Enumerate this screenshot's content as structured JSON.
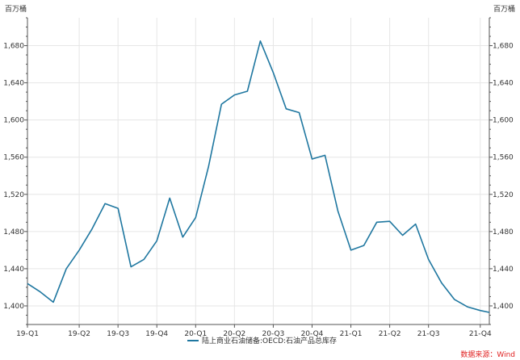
{
  "chart_data": {
    "type": "line",
    "y_unit_left": "百万桶",
    "y_unit_right": "百万桶",
    "ylim": [
      1380,
      1710
    ],
    "y_ticks": [
      1400,
      1440,
      1480,
      1520,
      1560,
      1600,
      1640,
      1680
    ],
    "y_tick_labels": [
      "1,400",
      "1,440",
      "1,480",
      "1,520",
      "1,560",
      "1,600",
      "1,640",
      "1,680"
    ],
    "xlim": [
      0,
      35.7
    ],
    "x_tick_positions": [
      0,
      4,
      7,
      10,
      13,
      16,
      19,
      22,
      25,
      28,
      31,
      35
    ],
    "x_tick_labels": [
      "19-Q1",
      "19-Q2",
      "19-Q3",
      "19-Q4",
      "20-Q1",
      "20-Q2",
      "20-Q3",
      "20-Q4",
      "21-Q1",
      "21-Q2",
      "21-Q3",
      "21-Q4"
    ],
    "grid": true,
    "legend_position": "bottom-center",
    "series": [
      {
        "name": "陆上商业石油储备:OECD:石油产品总库存",
        "color": "#1f77a0",
        "x": [
          0,
          1,
          2,
          3,
          4,
          5,
          6,
          7,
          8,
          9,
          10,
          11,
          12,
          13,
          14,
          15,
          16,
          17,
          18,
          19,
          20,
          21,
          22,
          23,
          24,
          25,
          26,
          27,
          28,
          29,
          30,
          31,
          32,
          33,
          34,
          35,
          35.7
        ],
        "values": [
          1424,
          1415,
          1404,
          1440,
          1460,
          1483,
          1510,
          1505,
          1442,
          1450,
          1470,
          1516,
          1474,
          1495,
          1550,
          1617,
          1627,
          1631,
          1685,
          1651,
          1612,
          1608,
          1558,
          1562,
          1502,
          1460,
          1465,
          1490,
          1491,
          1476,
          1488,
          1450,
          1425,
          1407,
          1399,
          1395,
          1393
        ]
      }
    ]
  },
  "source_text": "数据来源：Wind"
}
